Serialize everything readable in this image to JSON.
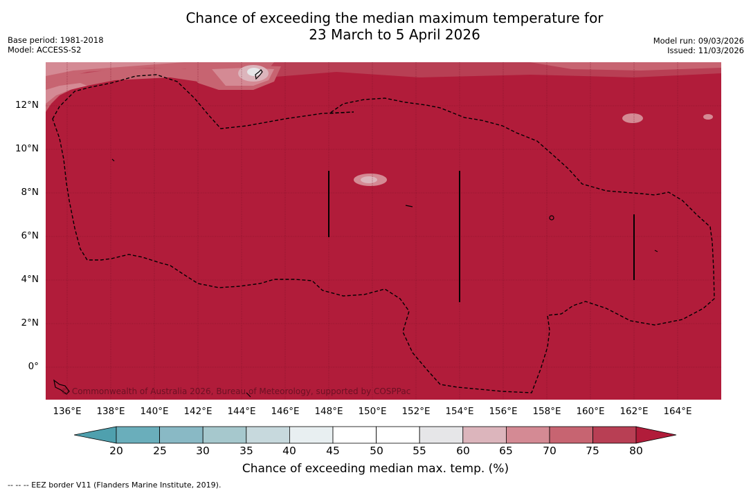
{
  "title": {
    "line1": "Chance of exceeding the median maximum temperature for",
    "line2": "23 March to 5 April 2026"
  },
  "meta": {
    "base_period": "Base period: 1981-2018",
    "model": "Model: ACCESS-S2",
    "model_run": "Model run: 09/03/2026",
    "issued": "Issued: 11/03/2026"
  },
  "map": {
    "copyright": "© Commonwealth of Australia 2026, Bureau of Meteorology, supported by COSPPac",
    "y_axis_labels": [
      "12°N",
      "10°N",
      "8°N",
      "6°N",
      "4°N",
      "2°N",
      "0°"
    ],
    "x_axis_labels": [
      "136°E",
      "138°E",
      "140°E",
      "142°E",
      "144°E",
      "146°E",
      "148°E",
      "150°E",
      "152°E",
      "154°E",
      "156°E",
      "158°E",
      "160°E",
      "162°E",
      "164°E"
    ],
    "lon_range": [
      135,
      166
    ],
    "lat_range": [
      -1.5,
      14
    ]
  },
  "colorbar": {
    "title": "Chance of exceeding median max. temp. (%)",
    "ticks": [
      "20",
      "25",
      "30",
      "35",
      "40",
      "45",
      "50",
      "55",
      "60",
      "65",
      "70",
      "75",
      "80"
    ],
    "colors": [
      "#4fa0ae",
      "#6aaebb",
      "#89b9c5",
      "#a6c8cd",
      "#c7d9dd",
      "#e8eff1",
      "#ffffff",
      "#ffffff",
      "#e6e6e8",
      "#dcb5bc",
      "#d48a94",
      "#c76471",
      "#b83f54",
      "#b11c3a"
    ]
  },
  "footer": {
    "eez_legend": "--  --  -- EEZ border V11 (Flanders Marine Institute, 2019)."
  }
}
